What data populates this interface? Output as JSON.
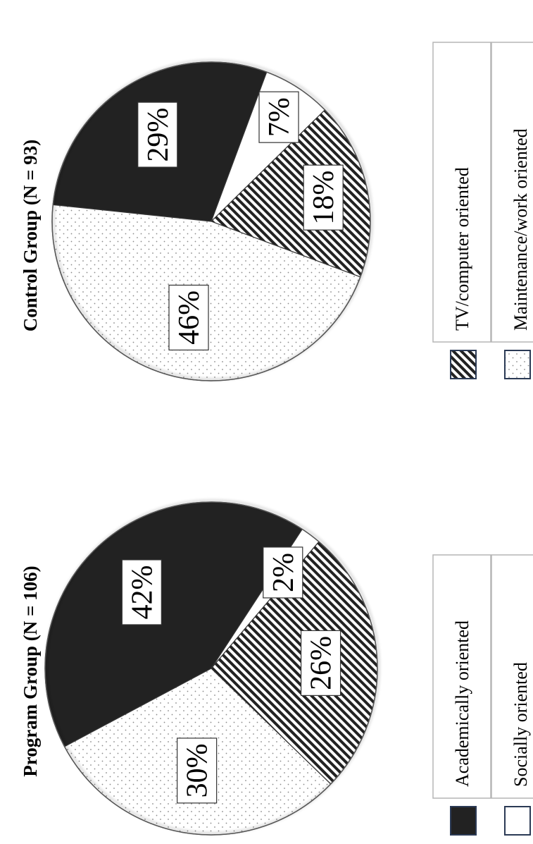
{
  "chart_data": [
    {
      "type": "pie",
      "title": "Program Group (N = 106)",
      "slices": [
        {
          "label": "Academically oriented",
          "value": 42,
          "display": "42%"
        },
        {
          "label": "Socially oriented",
          "value": 2,
          "display": "2%"
        },
        {
          "label": "TV/computer oriented",
          "value": 26,
          "display": "26%"
        },
        {
          "label": "Maintenance/work oriented",
          "value": 30,
          "display": "30%"
        }
      ]
    },
    {
      "type": "pie",
      "title": "Control Group (N = 93)",
      "slices": [
        {
          "label": "Academically oriented",
          "value": 29,
          "display": "29%"
        },
        {
          "label": "Socially oriented",
          "value": 7,
          "display": "7%"
        },
        {
          "label": "TV/computer oriented",
          "value": 18,
          "display": "18%"
        },
        {
          "label": "Maintenance/work oriented",
          "value": 46,
          "display": "46%"
        }
      ]
    }
  ],
  "legend": [
    {
      "label": "Academically oriented",
      "fill": "solid-black"
    },
    {
      "label": "Socially oriented",
      "fill": "white"
    },
    {
      "label": "TV/computer oriented",
      "fill": "diagonal-stripes"
    },
    {
      "label": "Maintenance/work oriented",
      "fill": "dots"
    }
  ],
  "colors": {
    "solid": "#222222",
    "stroke": "#333333",
    "legend_border": "#2b3a55"
  },
  "orientation": "rotated 90 degrees counter-clockwise"
}
